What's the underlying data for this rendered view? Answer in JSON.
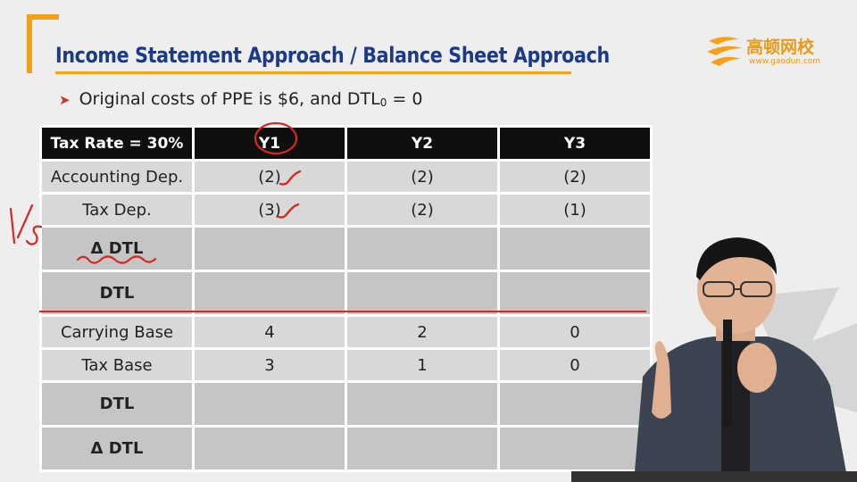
{
  "header": {
    "title": "Income Statement Approach / Balance Sheet Approach",
    "logo_text": "高顿网校",
    "logo_url": "www.gaodun.com"
  },
  "bullet": {
    "arrow": "➤",
    "text_main": "Original costs of PPE is $6, and DTL",
    "text_sub": "0",
    "text_tail": " = 0"
  },
  "table": {
    "headers": [
      "Tax Rate = 30%",
      "Y1",
      "Y2",
      "Y3"
    ],
    "rows": [
      {
        "label": "Accounting Dep.",
        "values": [
          "(2)",
          "(2)",
          "(2)"
        ],
        "bold": false
      },
      {
        "label": "Tax Dep.",
        "values": [
          "(3)",
          "(2)",
          "(1)"
        ],
        "bold": false
      },
      {
        "label": "Δ DTL",
        "values": [
          "",
          "",
          ""
        ],
        "bold": true
      },
      {
        "label": "DTL",
        "values": [
          "",
          "",
          ""
        ],
        "bold": true
      },
      {
        "label": "Carrying Base",
        "values": [
          "4",
          "2",
          "0"
        ],
        "bold": false
      },
      {
        "label": "Tax Base",
        "values": [
          "3",
          "1",
          "0"
        ],
        "bold": false
      },
      {
        "label": "DTL",
        "values": [
          "",
          "",
          ""
        ],
        "bold": true
      },
      {
        "label": "Δ DTL",
        "values": [
          "",
          "",
          ""
        ],
        "bold": true
      }
    ]
  },
  "annotations": {
    "side_note": "I/S",
    "colors": {
      "ink": "#d6281f",
      "brand_orange": "#f4a11a",
      "title_blue": "#1a3a8c"
    }
  }
}
